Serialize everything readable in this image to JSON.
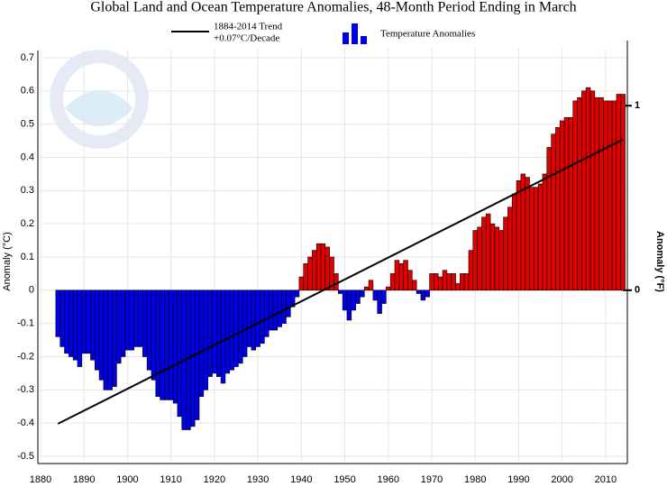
{
  "chart_data": {
    "type": "bar",
    "title": "Global Land and Ocean Temperature Anomalies, 48-Month Period Ending in March",
    "ylabel": "Anomaly (°C)",
    "y2label": "Anomaly (°F)",
    "series": [
      {
        "name": "Temperature Anomalies",
        "positive_color": "#e00000",
        "negative_color": "#0000e6",
        "x": [
          1884,
          1885,
          1886,
          1887,
          1888,
          1889,
          1890,
          1891,
          1892,
          1893,
          1894,
          1895,
          1896,
          1897,
          1898,
          1899,
          1900,
          1901,
          1902,
          1903,
          1904,
          1905,
          1906,
          1907,
          1908,
          1909,
          1910,
          1911,
          1912,
          1913,
          1914,
          1915,
          1916,
          1917,
          1918,
          1919,
          1920,
          1921,
          1922,
          1923,
          1924,
          1925,
          1926,
          1927,
          1928,
          1929,
          1930,
          1931,
          1932,
          1933,
          1934,
          1935,
          1936,
          1937,
          1938,
          1939,
          1940,
          1941,
          1942,
          1943,
          1944,
          1945,
          1946,
          1947,
          1948,
          1949,
          1950,
          1951,
          1952,
          1953,
          1954,
          1955,
          1956,
          1957,
          1958,
          1959,
          1960,
          1961,
          1962,
          1963,
          1964,
          1965,
          1966,
          1967,
          1968,
          1969,
          1970,
          1971,
          1972,
          1973,
          1974,
          1975,
          1976,
          1977,
          1978,
          1979,
          1980,
          1981,
          1982,
          1983,
          1984,
          1985,
          1986,
          1987,
          1988,
          1989,
          1990,
          1991,
          1992,
          1993,
          1994,
          1995,
          1996,
          1997,
          1998,
          1999,
          2000,
          2001,
          2002,
          2003,
          2004,
          2005,
          2006,
          2007,
          2008,
          2009,
          2010,
          2011,
          2012,
          2013,
          2014
        ],
        "values": [
          -0.14,
          -0.17,
          -0.19,
          -0.2,
          -0.21,
          -0.23,
          -0.19,
          -0.19,
          -0.21,
          -0.24,
          -0.27,
          -0.3,
          -0.3,
          -0.29,
          -0.22,
          -0.2,
          -0.18,
          -0.18,
          -0.17,
          -0.17,
          -0.2,
          -0.24,
          -0.27,
          -0.32,
          -0.33,
          -0.33,
          -0.33,
          -0.34,
          -0.38,
          -0.42,
          -0.42,
          -0.41,
          -0.39,
          -0.32,
          -0.3,
          -0.26,
          -0.25,
          -0.26,
          -0.28,
          -0.25,
          -0.24,
          -0.23,
          -0.22,
          -0.2,
          -0.17,
          -0.18,
          -0.17,
          -0.16,
          -0.14,
          -0.12,
          -0.12,
          -0.11,
          -0.1,
          -0.08,
          -0.05,
          -0.02,
          0.04,
          0.08,
          0.1,
          0.12,
          0.14,
          0.14,
          0.13,
          0.1,
          0.05,
          -0.01,
          -0.06,
          -0.09,
          -0.06,
          -0.04,
          -0.02,
          0.01,
          0.03,
          -0.03,
          -0.07,
          -0.04,
          0.01,
          0.05,
          0.09,
          0.08,
          0.09,
          0.06,
          0.03,
          -0.01,
          -0.03,
          -0.02,
          0.05,
          0.05,
          0.04,
          0.06,
          0.05,
          0.05,
          0.02,
          0.05,
          0.05,
          0.12,
          0.18,
          0.19,
          0.22,
          0.23,
          0.2,
          0.19,
          0.18,
          0.22,
          0.25,
          0.29,
          0.33,
          0.35,
          0.34,
          0.31,
          0.31,
          0.32,
          0.35,
          0.43,
          0.47,
          0.49,
          0.51,
          0.52,
          0.52,
          0.57,
          0.58,
          0.6,
          0.61,
          0.6,
          0.58,
          0.58,
          0.57,
          0.57,
          0.57,
          0.59,
          0.59
        ]
      },
      {
        "name": "1884-2014 Trend",
        "note": "+0.07°C/Decade",
        "type": "line",
        "color": "#000000",
        "x": [
          1884,
          2014
        ],
        "values": [
          -0.402,
          0.454
        ]
      }
    ],
    "xlim": [
      1880,
      2015
    ],
    "xticks": [
      1880,
      1890,
      1900,
      1910,
      1920,
      1930,
      1940,
      1950,
      1960,
      1970,
      1980,
      1990,
      2000,
      2010
    ],
    "ylim": [
      -0.5,
      0.7
    ],
    "yticks": [
      {
        "value": -0.5,
        "label": "-0.5"
      },
      {
        "value": -0.4,
        "label": "-0.4"
      },
      {
        "value": -0.3,
        "label": "-0.3"
      },
      {
        "value": -0.2,
        "label": "-0.2"
      },
      {
        "value": -0.1,
        "label": "-0.1"
      },
      0,
      0.1,
      0.2,
      0.3,
      0.4,
      0.5,
      0.6,
      0.7
    ],
    "y2lim": [
      -0.9,
      1.26
    ],
    "y2ticks": [
      0,
      1
    ],
    "grid": true
  }
}
